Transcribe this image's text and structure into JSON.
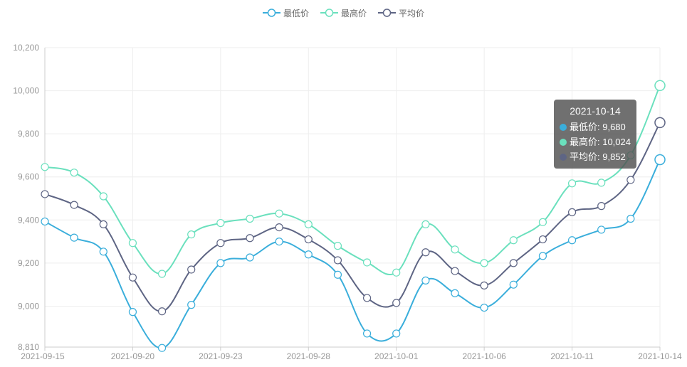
{
  "legend": [
    {
      "name": "最低价",
      "color": "#3aaedb"
    },
    {
      "name": "最高价",
      "color": "#6ae0bd"
    },
    {
      "name": "平均价",
      "color": "#5e6584"
    }
  ],
  "tooltip": {
    "date": "2021-10-14",
    "rows": [
      {
        "label": "最低价: 9,680",
        "color": "#3aaedb"
      },
      {
        "label": "最高价: 10,024",
        "color": "#6ae0bd"
      },
      {
        "label": "平均价: 9,852",
        "color": "#5e6584"
      }
    ]
  },
  "chart_data": {
    "type": "line",
    "x_tick_labels": [
      "2021-09-15",
      "2021-09-20",
      "2021-09-23",
      "2021-09-28",
      "2021-10-01",
      "2021-10-06",
      "2021-10-11",
      "2021-10-14"
    ],
    "y_tick_labels": [
      "8,810",
      "9,000",
      "9,200",
      "9,400",
      "9,600",
      "9,800",
      "10,000",
      "10,200"
    ],
    "ylim": [
      8810,
      10200
    ],
    "grid": true,
    "legend_position": "top-center",
    "series": [
      {
        "name": "最低价",
        "color": "#3aaedb",
        "values": [
          9393,
          9318,
          9253,
          8973,
          8806,
          9006,
          9200,
          9226,
          9300,
          9240,
          9146,
          8873,
          8873,
          9119,
          9060,
          8993,
          9100,
          9233,
          9306,
          9355,
          9406,
          9680
        ]
      },
      {
        "name": "最高价",
        "color": "#6ae0bd",
        "values": [
          9646,
          9620,
          9510,
          9293,
          9150,
          9333,
          9386,
          9406,
          9430,
          9380,
          9280,
          9203,
          9156,
          9380,
          9263,
          9200,
          9306,
          9390,
          9570,
          9573,
          9700,
          10024
        ]
      },
      {
        "name": "平均价",
        "color": "#5e6584",
        "values": [
          9520,
          9470,
          9380,
          9133,
          8976,
          9170,
          9293,
          9316,
          9366,
          9310,
          9213,
          9038,
          9015,
          9250,
          9163,
          9096,
          9200,
          9310,
          9436,
          9465,
          9586,
          9852
        ]
      }
    ]
  }
}
